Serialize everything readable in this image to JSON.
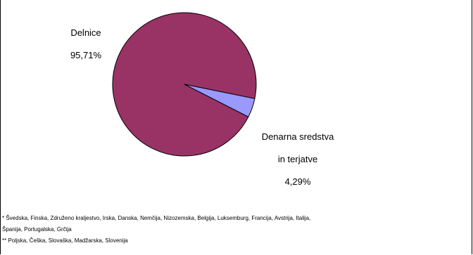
{
  "chart_data": {
    "type": "pie",
    "slices": [
      {
        "name": "Delnice",
        "label_lines": [
          "Delnice"
        ],
        "value_text": "95,71%",
        "value": 95.71,
        "color": "#993366"
      },
      {
        "name": "Denarna sredstva in terjatve",
        "label_lines": [
          "Denarna sredstva",
          "in terjatve"
        ],
        "value_text": "4,29%",
        "value": 4.29,
        "color": "#9999ff"
      }
    ]
  },
  "footnotes": [
    "* Švedska, Finska, Združeno kraljestvo, Irska, Danska, Nemčija, Nizozemska, Belgija, Luksemburg, Francija, Avstrija, Italija,",
    "Španija, Portugalska, Grčija",
    "** Poljska, Češka, Slovaška, Madžarska, Slovenija"
  ]
}
